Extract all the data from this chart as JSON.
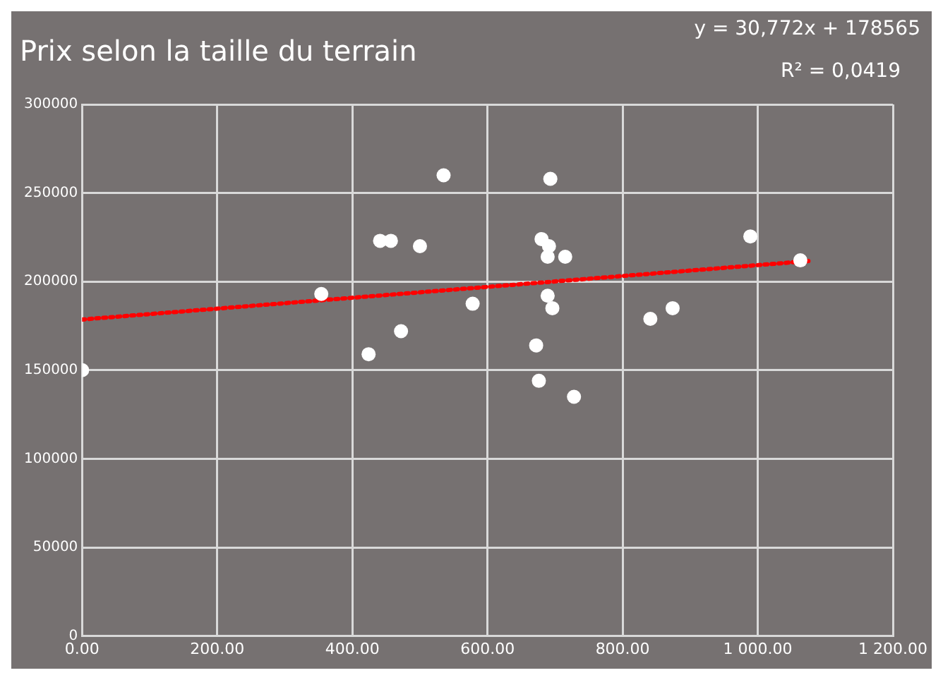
{
  "chart_data": {
    "type": "scatter",
    "title": "Prix selon la taille du terrain",
    "annotations": [
      "y = 30,772x + 178565",
      "R² = 0,0419"
    ],
    "series": [
      {
        "color": "#ffffff",
        "x": [
          0,
          535,
          693,
          441,
          457,
          500,
          354,
          578,
          680,
          691,
          689,
          715,
          689,
          696,
          424,
          472,
          672,
          676,
          728,
          841,
          874,
          989,
          1063
        ],
        "values": [
          150000,
          260000,
          258000,
          223000,
          223000,
          220000,
          193000,
          187500,
          224000,
          220000,
          214000,
          214000,
          192000,
          185000,
          159000,
          172000,
          164000,
          144000,
          135000,
          179000,
          185000,
          225500,
          212000
        ]
      },
      {
        "type": "line",
        "color": "#ff0000",
        "line_style": "dotted",
        "marker": "none",
        "x": [
          0,
          1075
        ],
        "values": [
          178600,
          211600
        ]
      }
    ],
    "xlim": [
      0,
      1200
    ],
    "xticks": [
      {
        "value": 0,
        "label": "0.00"
      },
      {
        "value": 200,
        "label": "200.00"
      },
      {
        "value": 400,
        "label": "400.00"
      },
      {
        "value": 600,
        "label": "600.00"
      },
      {
        "value": 800,
        "label": "800.00"
      },
      {
        "value": 1000,
        "label": "1 000.00"
      },
      {
        "value": 1200,
        "label": "1 200.00"
      }
    ],
    "ylim": [
      0,
      300000
    ],
    "yticks": [
      0,
      50000,
      100000,
      150000,
      200000,
      250000,
      300000
    ],
    "grid": true,
    "legend": false,
    "marker": "circle"
  }
}
